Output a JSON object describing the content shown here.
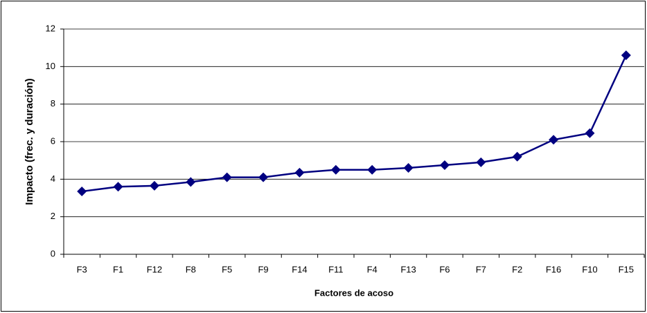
{
  "chart_data": {
    "type": "line",
    "x_label": "Factores de acoso",
    "y_label": "Impacto (frec. y duración)",
    "categories": [
      "F3",
      "F1",
      "F12",
      "F8",
      "F5",
      "F9",
      "F14",
      "F11",
      "F4",
      "F13",
      "F6",
      "F7",
      "F2",
      "F16",
      "F10",
      "F15"
    ],
    "series": [
      {
        "color": "#000080",
        "values": [
          3.35,
          3.6,
          3.65,
          3.85,
          4.1,
          4.1,
          4.35,
          4.5,
          4.5,
          4.6,
          4.75,
          4.9,
          5.2,
          6.1,
          6.45,
          10.6
        ]
      }
    ],
    "ylim": [
      0,
      12
    ],
    "yticks": [
      0,
      2,
      4,
      6,
      8,
      10,
      12
    ],
    "grid": true
  }
}
